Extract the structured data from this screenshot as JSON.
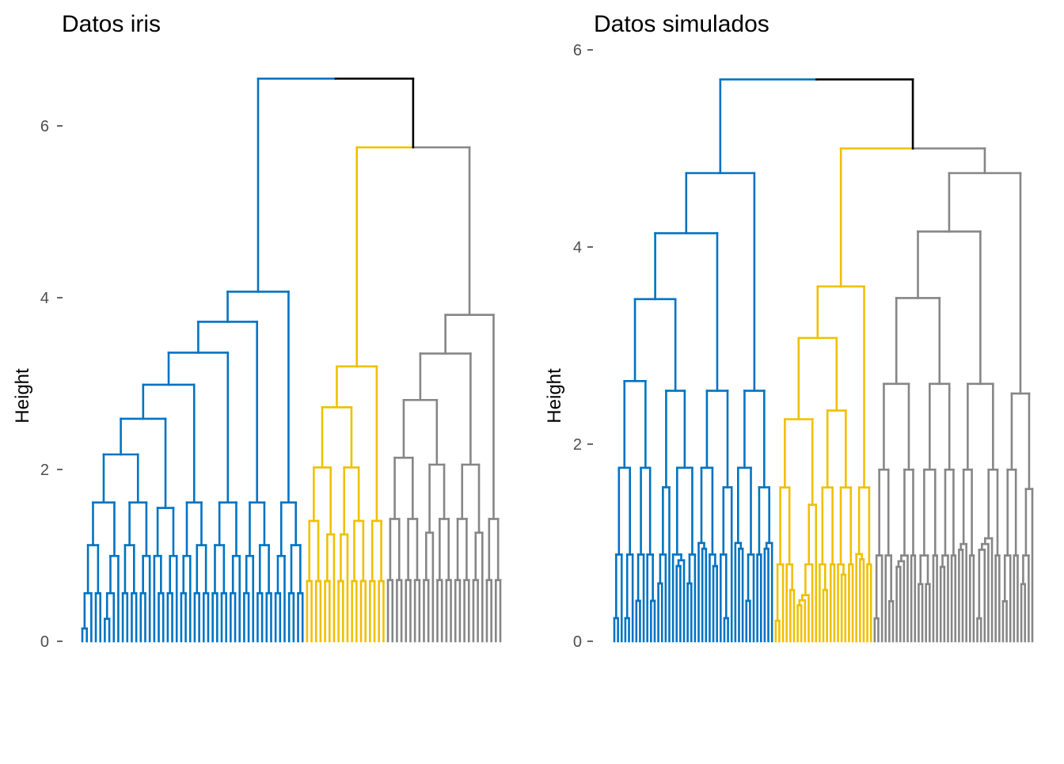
{
  "colors": {
    "cluster_1": "#0073C2",
    "cluster_2": "#EFC000",
    "cluster_3": "#868686",
    "root": "#000000"
  },
  "chart_data": [
    {
      "type": "dendrogram",
      "title": "Datos iris",
      "ylabel": "Height",
      "xlabel": "",
      "ylim": [
        0,
        6.6
      ],
      "yticks": [
        "0",
        "2",
        "4",
        "6"
      ],
      "grid": false,
      "clusters": 3,
      "leaves_per_cluster": [
        50,
        18,
        26
      ],
      "top_merges": [
        {
          "label": "root",
          "height": 6.55
        },
        {
          "label": "cluster_2 + cluster_3",
          "height": 5.75
        },
        {
          "label": "cluster_3 top",
          "height": 3.8
        },
        {
          "label": "cluster_2 top",
          "height": 3.2
        },
        {
          "label": "cluster_1 top",
          "height": 4.07
        }
      ],
      "cluster_1": {
        "node": [
          [
            [
              [
                0.5,
                0.4
              ],
              [
                0.55,
                0.45
              ]
            ],
            [
              [
                0.6,
                0.5
              ],
              0.45
            ]
          ],
          [
            [
              [
                0.45,
                0.5
              ],
              [
                0.6,
                0.55
              ]
            ],
            [
              [
                0.5,
                0.55
              ],
              0.5
            ]
          ],
          [
            [
              0.55,
              [
                0.6,
                0.45
              ]
            ],
            [
              [
                0.5,
                0.4
              ],
              0.55
            ]
          ],
          [
            [
              [
                0.45,
                0.5
              ],
              0.6
            ],
            [
              [
                0.55,
                0.4
              ],
              [
                0.5,
                0.45
              ]
            ]
          ],
          [
            [
              [
                0.5,
                0.55
              ],
              [
                0.45,
                0.6
              ]
            ],
            [
              [
                0.4,
                0.5
              ],
              0.55
            ]
          ],
          [
            [
              [
                0.6,
                0.45
              ],
              0.5
            ],
            [
              [
                0.55,
                0.5
              ],
              [
                0.4,
                0.45
              ]
            ]
          ],
          [
            [
              [
                0.5,
                0.45
              ],
              0.55
            ],
            [
              [
                0.6,
                0.5
              ],
              [
                0.45,
                0.4
              ]
            ]
          ]
        ],
        "height": 4.07
      },
      "cluster_2": {
        "node": [
          [
            [
              [
                0.5,
                0.45
              ],
              [
                0.55,
                0.4
              ]
            ],
            [
              [
                0.6,
                0.5
              ],
              0.45
            ]
          ],
          [
            [
              [
                0.45,
                0.5
              ],
              0.55
            ],
            [
              [
                0.5,
                0.6
              ],
              [
                0.4,
                0.5
              ]
            ]
          ],
          [
            [
              0.55,
              0.45
            ],
            [
              0.5,
              0.6
            ]
          ]
        ],
        "height": 3.2
      },
      "cluster_3": {
        "node": [
          [
            [
              [
                0.45,
                0.5
              ],
              [
                0.55,
                0.4
              ]
            ],
            [
              [
                0.6,
                0.5
              ],
              [
                0.45,
                0.55
              ]
            ]
          ],
          [
            [
              [
                0.5,
                0.4
              ],
              0.55
            ],
            [
              [
                0.45,
                0.6
              ],
              [
                0.5,
                0.55
              ]
            ]
          ],
          [
            [
              [
                0.55,
                0.5
              ],
              [
                0.4,
                0.45
              ]
            ],
            [
              [
                0.5,
                0.6
              ],
              0.55
            ]
          ],
          [
            [
              0.45,
              0.5
            ],
            [
              0.55,
              0.4
            ]
          ]
        ],
        "height": 3.8
      }
    },
    {
      "type": "dendrogram",
      "title": "Datos simulados",
      "ylabel": "Height",
      "xlabel": "",
      "ylim": [
        0,
        6.1
      ],
      "yticks": [
        "0",
        "2",
        "4",
        "6"
      ],
      "grid": false,
      "clusters": 3,
      "leaves_per_cluster": [
        44,
        27,
        44
      ],
      "top_merges": [
        {
          "label": "root",
          "height": 5.7
        },
        {
          "label": "cluster_2 + cluster_3",
          "height": 5.0
        },
        {
          "label": "cluster_1 top",
          "height": 4.75
        },
        {
          "label": "cluster_2 top",
          "height": 3.6
        },
        {
          "label": "cluster_3 top",
          "height": 4.75
        }
      ],
      "cluster_1": {
        "node": [
          [
            [
              [
                0.45,
                0.5
              ],
              [
                0.55,
                0.4
              ]
            ],
            [
              [
                0.6,
                0.5
              ],
              [
                0.45,
                0.55
              ]
            ]
          ],
          [
            [
              [
                0.5,
                0.45
              ],
              0.55
            ],
            [
              [
                0.5,
                0.6
              ],
              [
                0.4,
                0.5
              ]
            ]
          ],
          [
            [
              [
                0.55,
                0.5
              ],
              [
                0.45,
                0.4
              ]
            ],
            [
              [
                0.5,
                0.6
              ],
              0.55
            ]
          ],
          [
            [
              [
                0.45,
                0.5
              ],
              [
                0.55,
                0.45
              ]
            ],
            [
              [
                0.6,
                0.5
              ],
              0.5
            ]
          ]
        ],
        "height": 4.75
      },
      "cluster_2": {
        "node": [
          [
            [
              [
                0.5,
                0.45
              ],
              [
                0.55,
                0.4
              ]
            ],
            [
              [
                0.6,
                0.5
              ],
              0.45
            ]
          ],
          [
            [
              [
                0.45,
                0.5
              ],
              [
                0.55,
                0.5
              ]
            ],
            [
              [
                0.5,
                0.6
              ],
              [
                0.4,
                0.5
              ]
            ]
          ],
          [
            [
              0.55,
              0.45
            ],
            [
              0.5,
              0.6
            ]
          ]
        ],
        "height": 3.6
      },
      "cluster_3": {
        "node": [
          [
            [
              [
                0.45,
                0.5
              ],
              [
                0.55,
                0.4
              ]
            ],
            [
              [
                0.6,
                0.5
              ],
              [
                0.45,
                0.55
              ]
            ]
          ],
          [
            [
              [
                0.5,
                0.4
              ],
              [
                0.55,
                0.45
              ]
            ],
            [
              [
                0.45,
                0.6
              ],
              [
                0.5,
                0.55
              ]
            ]
          ],
          [
            [
              [
                0.55,
                0.5
              ],
              [
                0.4,
                0.45
              ]
            ],
            [
              [
                0.5,
                0.6
              ],
              [
                0.55,
                0.5
              ]
            ]
          ],
          [
            [
              [
                0.45,
                0.5
              ],
              [
                0.55,
                0.4
              ]
            ],
            [
              [
                0.5,
                0.45
              ],
              0.55
            ]
          ]
        ],
        "height": 4.75
      }
    }
  ]
}
